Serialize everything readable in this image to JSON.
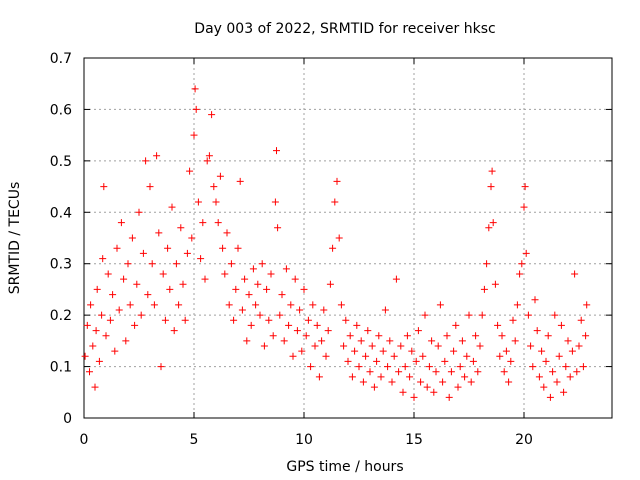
{
  "chart_data": {
    "type": "scatter",
    "title": "Day 003 of 2022, SRMTID for receiver hksc",
    "xlabel": "GPS time / hours",
    "ylabel": "SRMTID / TECUs",
    "xlim": [
      0,
      24
    ],
    "ylim": [
      0,
      0.7
    ],
    "xticks": [
      0,
      5,
      10,
      15,
      20
    ],
    "yticks": [
      0,
      0.1,
      0.2,
      0.3,
      0.4,
      0.5,
      0.6,
      0.7
    ],
    "ytick_labels": [
      "0",
      "0.1",
      "0.2",
      "0.3",
      "0.4",
      "0.5",
      "0.6",
      "0.7"
    ],
    "grid": true,
    "marker": "+",
    "series": [
      {
        "name": "SRMTID",
        "color": "#ff0000",
        "points": [
          [
            0.05,
            0.12
          ],
          [
            0.15,
            0.18
          ],
          [
            0.25,
            0.09
          ],
          [
            0.3,
            0.22
          ],
          [
            0.4,
            0.14
          ],
          [
            0.5,
            0.06
          ],
          [
            0.55,
            0.17
          ],
          [
            0.6,
            0.25
          ],
          [
            0.7,
            0.11
          ],
          [
            0.8,
            0.2
          ],
          [
            0.85,
            0.31
          ],
          [
            0.9,
            0.45
          ],
          [
            1.0,
            0.16
          ],
          [
            1.1,
            0.28
          ],
          [
            1.2,
            0.19
          ],
          [
            1.3,
            0.24
          ],
          [
            1.4,
            0.13
          ],
          [
            1.5,
            0.33
          ],
          [
            1.6,
            0.21
          ],
          [
            1.7,
            0.38
          ],
          [
            1.8,
            0.27
          ],
          [
            1.9,
            0.15
          ],
          [
            2.0,
            0.3
          ],
          [
            2.1,
            0.22
          ],
          [
            2.2,
            0.35
          ],
          [
            2.3,
            0.18
          ],
          [
            2.4,
            0.26
          ],
          [
            2.5,
            0.4
          ],
          [
            2.6,
            0.2
          ],
          [
            2.7,
            0.32
          ],
          [
            2.8,
            0.5
          ],
          [
            2.9,
            0.24
          ],
          [
            3.0,
            0.45
          ],
          [
            3.1,
            0.3
          ],
          [
            3.2,
            0.22
          ],
          [
            3.3,
            0.51
          ],
          [
            3.4,
            0.36
          ],
          [
            3.5,
            0.1
          ],
          [
            3.6,
            0.28
          ],
          [
            3.7,
            0.19
          ],
          [
            3.8,
            0.33
          ],
          [
            3.9,
            0.25
          ],
          [
            4.0,
            0.41
          ],
          [
            4.1,
            0.17
          ],
          [
            4.2,
            0.3
          ],
          [
            4.3,
            0.22
          ],
          [
            4.4,
            0.37
          ],
          [
            4.5,
            0.26
          ],
          [
            4.6,
            0.19
          ],
          [
            4.7,
            0.32
          ],
          [
            4.8,
            0.48
          ],
          [
            4.9,
            0.35
          ],
          [
            5.0,
            0.55
          ],
          [
            5.05,
            0.64
          ],
          [
            5.1,
            0.6
          ],
          [
            5.2,
            0.42
          ],
          [
            5.3,
            0.31
          ],
          [
            5.4,
            0.38
          ],
          [
            5.5,
            0.27
          ],
          [
            5.6,
            0.5
          ],
          [
            5.7,
            0.51
          ],
          [
            5.8,
            0.59
          ],
          [
            5.9,
            0.45
          ],
          [
            6.0,
            0.42
          ],
          [
            6.1,
            0.38
          ],
          [
            6.2,
            0.47
          ],
          [
            6.3,
            0.33
          ],
          [
            6.4,
            0.28
          ],
          [
            6.5,
            0.36
          ],
          [
            6.6,
            0.22
          ],
          [
            6.7,
            0.3
          ],
          [
            6.8,
            0.19
          ],
          [
            6.9,
            0.25
          ],
          [
            7.0,
            0.33
          ],
          [
            7.1,
            0.46
          ],
          [
            7.2,
            0.21
          ],
          [
            7.3,
            0.27
          ],
          [
            7.4,
            0.15
          ],
          [
            7.5,
            0.24
          ],
          [
            7.6,
            0.18
          ],
          [
            7.7,
            0.29
          ],
          [
            7.8,
            0.22
          ],
          [
            7.9,
            0.26
          ],
          [
            8.0,
            0.2
          ],
          [
            8.1,
            0.3
          ],
          [
            8.2,
            0.14
          ],
          [
            8.3,
            0.25
          ],
          [
            8.4,
            0.19
          ],
          [
            8.5,
            0.28
          ],
          [
            8.6,
            0.16
          ],
          [
            8.7,
            0.42
          ],
          [
            8.75,
            0.52
          ],
          [
            8.8,
            0.37
          ],
          [
            8.9,
            0.2
          ],
          [
            9.0,
            0.24
          ],
          [
            9.1,
            0.15
          ],
          [
            9.2,
            0.29
          ],
          [
            9.3,
            0.18
          ],
          [
            9.4,
            0.22
          ],
          [
            9.5,
            0.12
          ],
          [
            9.6,
            0.27
          ],
          [
            9.7,
            0.17
          ],
          [
            9.8,
            0.21
          ],
          [
            9.9,
            0.13
          ],
          [
            10.0,
            0.25
          ],
          [
            10.1,
            0.16
          ],
          [
            10.2,
            0.19
          ],
          [
            10.3,
            0.1
          ],
          [
            10.4,
            0.22
          ],
          [
            10.5,
            0.14
          ],
          [
            10.6,
            0.18
          ],
          [
            10.7,
            0.08
          ],
          [
            10.8,
            0.15
          ],
          [
            10.9,
            0.21
          ],
          [
            11.0,
            0.12
          ],
          [
            11.1,
            0.17
          ],
          [
            11.2,
            0.26
          ],
          [
            11.3,
            0.33
          ],
          [
            11.4,
            0.42
          ],
          [
            11.5,
            0.46
          ],
          [
            11.6,
            0.35
          ],
          [
            11.7,
            0.22
          ],
          [
            11.8,
            0.14
          ],
          [
            11.9,
            0.19
          ],
          [
            12.0,
            0.11
          ],
          [
            12.1,
            0.16
          ],
          [
            12.2,
            0.08
          ],
          [
            12.3,
            0.13
          ],
          [
            12.4,
            0.18
          ],
          [
            12.5,
            0.1
          ],
          [
            12.6,
            0.15
          ],
          [
            12.7,
            0.07
          ],
          [
            12.8,
            0.12
          ],
          [
            12.9,
            0.17
          ],
          [
            13.0,
            0.09
          ],
          [
            13.1,
            0.14
          ],
          [
            13.2,
            0.06
          ],
          [
            13.3,
            0.11
          ],
          [
            13.4,
            0.16
          ],
          [
            13.5,
            0.08
          ],
          [
            13.6,
            0.13
          ],
          [
            13.7,
            0.21
          ],
          [
            13.8,
            0.1
          ],
          [
            13.9,
            0.15
          ],
          [
            14.0,
            0.07
          ],
          [
            14.1,
            0.12
          ],
          [
            14.2,
            0.27
          ],
          [
            14.3,
            0.09
          ],
          [
            14.4,
            0.14
          ],
          [
            14.5,
            0.05
          ],
          [
            14.6,
            0.1
          ],
          [
            14.7,
            0.16
          ],
          [
            14.8,
            0.08
          ],
          [
            14.9,
            0.13
          ],
          [
            15.0,
            0.04
          ],
          [
            15.1,
            0.11
          ],
          [
            15.2,
            0.17
          ],
          [
            15.3,
            0.07
          ],
          [
            15.4,
            0.12
          ],
          [
            15.5,
            0.2
          ],
          [
            15.6,
            0.06
          ],
          [
            15.7,
            0.1
          ],
          [
            15.8,
            0.15
          ],
          [
            15.9,
            0.05
          ],
          [
            16.0,
            0.09
          ],
          [
            16.1,
            0.14
          ],
          [
            16.2,
            0.22
          ],
          [
            16.3,
            0.07
          ],
          [
            16.4,
            0.11
          ],
          [
            16.5,
            0.16
          ],
          [
            16.6,
            0.04
          ],
          [
            16.7,
            0.09
          ],
          [
            16.8,
            0.13
          ],
          [
            16.9,
            0.18
          ],
          [
            17.0,
            0.06
          ],
          [
            17.1,
            0.1
          ],
          [
            17.2,
            0.15
          ],
          [
            17.3,
            0.08
          ],
          [
            17.4,
            0.12
          ],
          [
            17.5,
            0.2
          ],
          [
            17.6,
            0.07
          ],
          [
            17.7,
            0.11
          ],
          [
            17.8,
            0.16
          ],
          [
            17.9,
            0.09
          ],
          [
            18.0,
            0.14
          ],
          [
            18.1,
            0.2
          ],
          [
            18.2,
            0.25
          ],
          [
            18.3,
            0.3
          ],
          [
            18.4,
            0.37
          ],
          [
            18.5,
            0.45
          ],
          [
            18.55,
            0.48
          ],
          [
            18.6,
            0.38
          ],
          [
            18.7,
            0.26
          ],
          [
            18.8,
            0.18
          ],
          [
            18.9,
            0.12
          ],
          [
            19.0,
            0.16
          ],
          [
            19.1,
            0.09
          ],
          [
            19.2,
            0.13
          ],
          [
            19.3,
            0.07
          ],
          [
            19.4,
            0.11
          ],
          [
            19.5,
            0.19
          ],
          [
            19.6,
            0.15
          ],
          [
            19.7,
            0.22
          ],
          [
            19.8,
            0.28
          ],
          [
            19.9,
            0.3
          ],
          [
            20.0,
            0.41
          ],
          [
            20.05,
            0.45
          ],
          [
            20.1,
            0.32
          ],
          [
            20.2,
            0.2
          ],
          [
            20.3,
            0.14
          ],
          [
            20.4,
            0.1
          ],
          [
            20.5,
            0.23
          ],
          [
            20.6,
            0.17
          ],
          [
            20.7,
            0.08
          ],
          [
            20.8,
            0.13
          ],
          [
            20.9,
            0.06
          ],
          [
            21.0,
            0.11
          ],
          [
            21.1,
            0.16
          ],
          [
            21.2,
            0.04
          ],
          [
            21.3,
            0.09
          ],
          [
            21.4,
            0.2
          ],
          [
            21.5,
            0.07
          ],
          [
            21.6,
            0.12
          ],
          [
            21.7,
            0.18
          ],
          [
            21.8,
            0.05
          ],
          [
            21.9,
            0.1
          ],
          [
            22.0,
            0.15
          ],
          [
            22.1,
            0.08
          ],
          [
            22.2,
            0.13
          ],
          [
            22.3,
            0.28
          ],
          [
            22.4,
            0.09
          ],
          [
            22.5,
            0.14
          ],
          [
            22.6,
            0.19
          ],
          [
            22.7,
            0.1
          ],
          [
            22.8,
            0.16
          ],
          [
            22.85,
            0.22
          ]
        ]
      }
    ]
  }
}
